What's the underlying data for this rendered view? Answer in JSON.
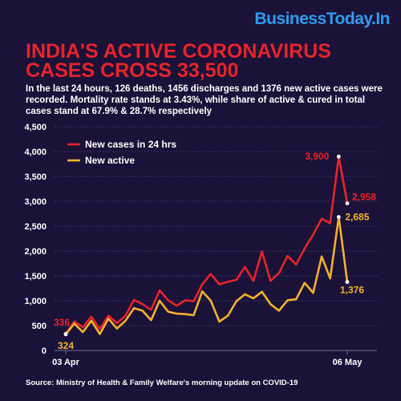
{
  "brand": {
    "name": "BusinessToday.In"
  },
  "headline": {
    "line1": "INDIA'S ACTIVE CORONAVIRUS",
    "line2": "CASES CROSS 33,500"
  },
  "subtext": "In the last 24 hours, 126 deaths, 1456 discharges and 1376 new active cases were recorded. Mortality rate stands at 3.43%, while share of active & cured in total cases stand at 67.9% & 28.7% respectively",
  "source": "Source: Ministry of Health & Family Welfare's morning update on COVID-19",
  "colors": {
    "background": "#1a1238",
    "headline": "#e8232b",
    "brand": "#2e9cf0",
    "new_cases": "#e8232b",
    "new_active": "#f5b12d"
  },
  "chart_data": {
    "type": "line",
    "title": "",
    "xlabel": "",
    "ylabel": "",
    "ylim": [
      0,
      4500
    ],
    "yticks": [
      "0",
      "500",
      "1,000",
      "1,500",
      "2,000",
      "2,500",
      "3,000",
      "3,500",
      "4,000",
      "4,500"
    ],
    "ytick_values": [
      0,
      500,
      1000,
      1500,
      2000,
      2500,
      3000,
      3500,
      4000,
      4500
    ],
    "x_start_label": "03 Apr",
    "x_end_label": "06 May",
    "grid": true,
    "legend_position": "top-left",
    "series": [
      {
        "name": "New cases in 24 hrs",
        "color": "#e8232b",
        "values": [
          336,
          580,
          470,
          680,
          430,
          700,
          550,
          700,
          1020,
          930,
          820,
          1210,
          1010,
          900,
          1010,
          990,
          1330,
          1540,
          1330,
          1380,
          1420,
          1680,
          1400,
          1990,
          1400,
          1560,
          1900,
          1730,
          2050,
          2330,
          2650,
          2560,
          3900,
          2958
        ]
      },
      {
        "name": "New active",
        "color": "#f5b12d",
        "values": [
          324,
          540,
          370,
          600,
          330,
          640,
          440,
          600,
          850,
          800,
          610,
          1000,
          780,
          740,
          730,
          710,
          1190,
          1000,
          580,
          700,
          990,
          1130,
          1050,
          1180,
          930,
          800,
          1010,
          1030,
          1360,
          1160,
          1890,
          1450,
          2685,
          1376
        ]
      }
    ],
    "annotations": [
      {
        "series": 0,
        "index": 0,
        "text": "336"
      },
      {
        "series": 1,
        "index": 0,
        "text": "324"
      },
      {
        "series": 0,
        "index": 32,
        "text": "3,900"
      },
      {
        "series": 0,
        "index": 33,
        "text": "2,958"
      },
      {
        "series": 1,
        "index": 32,
        "text": "2,685"
      },
      {
        "series": 1,
        "index": 33,
        "text": "1,376"
      }
    ]
  }
}
